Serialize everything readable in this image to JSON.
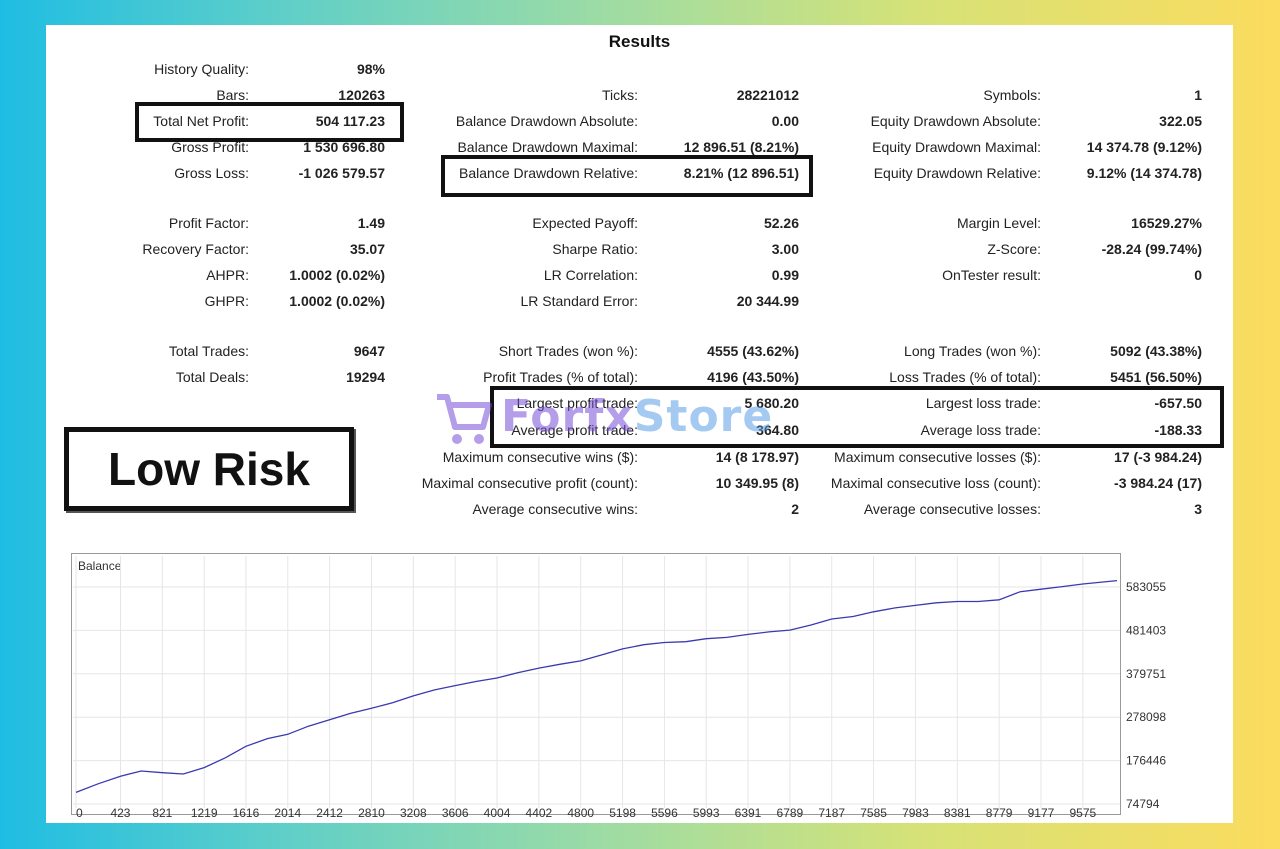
{
  "title": "Results",
  "col1": [
    {
      "label": "History Quality:",
      "value": "98%"
    },
    {
      "label": "Bars:",
      "value": "120263"
    },
    {
      "label": "Total Net Profit:",
      "value": "504 117.23"
    },
    {
      "label": "Gross Profit:",
      "value": "1 530 696.80"
    },
    {
      "label": "Gross Loss:",
      "value": "-1 026 579.57"
    },
    {
      "label": "Profit Factor:",
      "value": "1.49"
    },
    {
      "label": "Recovery Factor:",
      "value": "35.07"
    },
    {
      "label": "AHPR:",
      "value": "1.0002 (0.02%)"
    },
    {
      "label": "GHPR:",
      "value": "1.0002 (0.02%)"
    },
    {
      "label": "Total Trades:",
      "value": "9647"
    },
    {
      "label": "Total Deals:",
      "value": "19294"
    }
  ],
  "col2": [
    {
      "label": "Ticks:",
      "value": "28221012"
    },
    {
      "label": "Balance Drawdown Absolute:",
      "value": "0.00"
    },
    {
      "label": "Balance Drawdown Maximal:",
      "value": "12 896.51 (8.21%)"
    },
    {
      "label": "Balance Drawdown Relative:",
      "value": "8.21% (12 896.51)"
    },
    {
      "label": "Expected Payoff:",
      "value": "52.26"
    },
    {
      "label": "Sharpe Ratio:",
      "value": "3.00"
    },
    {
      "label": "LR Correlation:",
      "value": "0.99"
    },
    {
      "label": "LR Standard Error:",
      "value": "20 344.99"
    },
    {
      "label": "Short Trades (won %):",
      "value": "4555 (43.62%)"
    },
    {
      "label": "Profit Trades (% of total):",
      "value": "4196 (43.50%)"
    },
    {
      "label": "Largest profit trade:",
      "value": "5 680.20"
    },
    {
      "label": "Average profit trade:",
      "value": "364.80"
    },
    {
      "label": "Maximum consecutive wins ($):",
      "value": "14 (8 178.97)"
    },
    {
      "label": "Maximal consecutive profit (count):",
      "value": "10 349.95 (8)"
    },
    {
      "label": "Average consecutive wins:",
      "value": "2"
    }
  ],
  "col3": [
    {
      "label": "Symbols:",
      "value": "1"
    },
    {
      "label": "Equity Drawdown Absolute:",
      "value": "322.05"
    },
    {
      "label": "Equity Drawdown Maximal:",
      "value": "14 374.78 (9.12%)"
    },
    {
      "label": "Equity Drawdown Relative:",
      "value": "9.12% (14 374.78)"
    },
    {
      "label": "Margin Level:",
      "value": "16529.27%"
    },
    {
      "label": "Z-Score:",
      "value": "-28.24 (99.74%)"
    },
    {
      "label": "OnTester result:",
      "value": "0"
    },
    {
      "label": "Long Trades (won %):",
      "value": "5092 (43.38%)"
    },
    {
      "label": "Loss Trades (% of total):",
      "value": "5451 (56.50%)"
    },
    {
      "label": "Largest loss trade:",
      "value": "-657.50"
    },
    {
      "label": "Average loss trade:",
      "value": "-188.33"
    },
    {
      "label": "Maximum consecutive losses ($):",
      "value": "17 (-3 984.24)"
    },
    {
      "label": "Maximal consecutive loss (count):",
      "value": "-3 984.24 (17)"
    },
    {
      "label": "Average consecutive losses:",
      "value": "3"
    }
  ],
  "overlay": {
    "risk_label": "Low Risk",
    "watermark": "Forfx Store",
    "watermark_color": "#7a4fd8"
  },
  "chart_data": {
    "type": "line",
    "title": "Balance",
    "x_ticks": [
      "0",
      "423",
      "821",
      "1219",
      "1616",
      "2014",
      "2412",
      "2810",
      "3208",
      "3606",
      "4004",
      "4402",
      "4800",
      "5198",
      "5596",
      "5993",
      "6391",
      "6789",
      "7187",
      "7585",
      "7983",
      "8381",
      "8779",
      "9177",
      "9575"
    ],
    "y_ticks": [
      "583055",
      "481403",
      "379751",
      "278098",
      "176446",
      "74794"
    ],
    "series": [
      {
        "color": "#3a3ab0",
        "x": [
          0,
          210,
          423,
          620,
          821,
          1020,
          1219,
          1420,
          1616,
          1820,
          2014,
          2210,
          2412,
          2610,
          2810,
          3010,
          3208,
          3410,
          3606,
          3810,
          4004,
          4200,
          4402,
          4600,
          4800,
          5000,
          5198,
          5400,
          5596,
          5800,
          5993,
          6190,
          6391,
          6590,
          6789,
          6990,
          7187,
          7390,
          7585,
          7790,
          7983,
          8180,
          8381,
          8580,
          8779,
          8980,
          9177,
          9380,
          9575,
          9900
        ],
        "y": [
          102000,
          122000,
          140000,
          152000,
          148000,
          145000,
          160000,
          183000,
          210000,
          228000,
          238000,
          257000,
          272000,
          287000,
          299000,
          312000,
          328000,
          342000,
          352000,
          362000,
          370000,
          382000,
          393000,
          402000,
          410000,
          424000,
          438000,
          448000,
          453000,
          455000,
          462000,
          465000,
          472000,
          478000,
          482000,
          494000,
          508000,
          514000,
          525000,
          534000,
          540000,
          546000,
          549000,
          549000,
          553000,
          572000,
          578000,
          584000,
          590000,
          598000
        ]
      }
    ]
  }
}
